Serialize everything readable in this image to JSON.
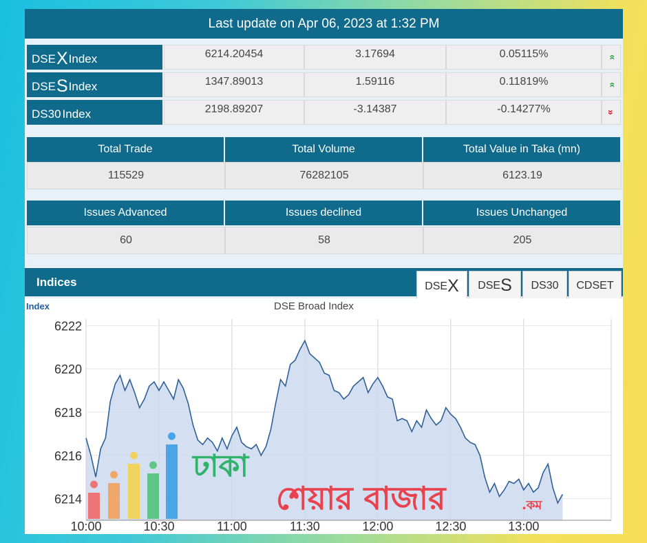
{
  "update_text": "Last update on Apr 06, 2023 at 1:32 PM",
  "indices": [
    {
      "prefix": "DSE",
      "big": "X",
      "suffix": " Index",
      "value": "6214.20454",
      "change": "3.17694",
      "percent": "0.05115%",
      "direction": "up",
      "arrow": "»"
    },
    {
      "prefix": "DSE",
      "big": "S",
      "suffix": " Index",
      "value": "1347.89013",
      "change": "1.59116",
      "percent": "0.11819%",
      "direction": "up",
      "arrow": "»"
    },
    {
      "prefix": "DS30",
      "big": "",
      "suffix": " Index",
      "value": "2198.89207",
      "change": "-3.14387",
      "percent": "-0.14277%",
      "direction": "down",
      "arrow": "»"
    }
  ],
  "trade_stats": {
    "headers": [
      "Total Trade",
      "Total Volume",
      "Total Value in Taka (mn)"
    ],
    "values": [
      "115529",
      "76282105",
      "6123.19"
    ]
  },
  "issue_stats": {
    "headers": [
      "Issues Advanced",
      "Issues declined",
      "Issues Unchanged"
    ],
    "values": [
      "60",
      "58",
      "205"
    ]
  },
  "indices_section": {
    "title": "Indices",
    "tabs": [
      {
        "prefix": "DSE",
        "big": "X"
      },
      {
        "prefix": "DSE",
        "big": "S"
      },
      {
        "prefix": "DS30",
        "big": ""
      },
      {
        "prefix": "CDSET",
        "big": ""
      }
    ],
    "active_tab": 0
  },
  "watermark": {
    "line1": "ঢাকা",
    "line2": "শেয়ার বাজার",
    "suffix": ".কম"
  },
  "colors": {
    "header_bg": "#0f6a8c",
    "line": "#2e5f97",
    "fill": "#ccdaef",
    "up": "#1fa63b",
    "down": "#d9182b"
  },
  "chart_data": {
    "type": "area",
    "title": "DSE Broad Index",
    "ylabel": "Index",
    "xlabel": "",
    "x_ticks": [
      "10:00",
      "10:30",
      "11:00",
      "11:30",
      "12:00",
      "12:30",
      "13:00"
    ],
    "y_ticks": [
      6214,
      6216,
      6218,
      6220,
      6222
    ],
    "ylim": [
      6213,
      6222.3
    ],
    "x_range_minutes": [
      600,
      816
    ],
    "grid": true,
    "series": [
      {
        "x": [
          "10:00",
          "10:02",
          "10:04",
          "10:06",
          "10:08",
          "10:10",
          "10:12",
          "10:14",
          "10:16",
          "10:18",
          "10:20",
          "10:22",
          "10:24",
          "10:26",
          "10:28",
          "10:30",
          "10:32",
          "10:34",
          "10:36",
          "10:38",
          "10:40",
          "10:42",
          "10:44",
          "10:46",
          "10:48",
          "10:50",
          "10:52",
          "10:54",
          "10:56",
          "10:58",
          "11:00",
          "11:02",
          "11:04",
          "11:06",
          "11:08",
          "11:10",
          "11:12",
          "11:14",
          "11:16",
          "11:18",
          "11:20",
          "11:22",
          "11:24",
          "11:26",
          "11:28",
          "11:30",
          "11:32",
          "11:34",
          "11:36",
          "11:38",
          "11:40",
          "11:42",
          "11:44",
          "11:46",
          "11:48",
          "11:50",
          "11:52",
          "11:54",
          "11:56",
          "11:58",
          "12:00",
          "12:02",
          "12:04",
          "12:06",
          "12:08",
          "12:10",
          "12:12",
          "12:14",
          "12:16",
          "12:18",
          "12:20",
          "12:22",
          "12:24",
          "12:26",
          "12:28",
          "12:30",
          "12:32",
          "12:34",
          "12:36",
          "12:38",
          "12:40",
          "12:42",
          "12:44",
          "12:46",
          "12:48",
          "12:50",
          "12:52",
          "12:54",
          "12:56",
          "12:58",
          "13:00",
          "13:02",
          "13:04",
          "13:06",
          "13:08",
          "13:10",
          "13:12",
          "13:14",
          "13:16"
        ],
        "y": [
          6216.8,
          6216.0,
          6215.0,
          6216.3,
          6216.8,
          6218.5,
          6219.3,
          6219.7,
          6219.0,
          6219.5,
          6218.9,
          6218.2,
          6218.6,
          6219.2,
          6219.4,
          6219.0,
          6219.4,
          6219.0,
          6218.6,
          6219.5,
          6219.1,
          6218.4,
          6217.4,
          6216.7,
          6216.5,
          6216.8,
          6216.6,
          6216.2,
          6216.8,
          6216.3,
          6216.9,
          6217.3,
          6216.6,
          6216.4,
          6216.3,
          6216.5,
          6216.0,
          6216.4,
          6217.2,
          6218.4,
          6219.5,
          6219.2,
          6220.2,
          6220.4,
          6220.9,
          6221.3,
          6220.7,
          6220.5,
          6220.3,
          6219.8,
          6219.7,
          6219.0,
          6218.9,
          6218.6,
          6218.8,
          6219.2,
          6219.4,
          6219.6,
          6218.9,
          6219.3,
          6219.6,
          6219.2,
          6218.7,
          6218.6,
          6217.6,
          6217.7,
          6217.6,
          6217.1,
          6217.6,
          6217.3,
          6218.1,
          6217.7,
          6217.4,
          6217.6,
          6218.2,
          6217.9,
          6217.7,
          6217.3,
          6216.8,
          6216.6,
          6216.5,
          6216.0,
          6215.0,
          6214.3,
          6214.7,
          6214.1,
          6214.4,
          6214.8,
          6214.7,
          6214.9,
          6214.4,
          6214.7,
          6214.3,
          6214.5,
          6215.2,
          6215.6,
          6214.5,
          6213.8,
          6214.2
        ]
      }
    ]
  }
}
